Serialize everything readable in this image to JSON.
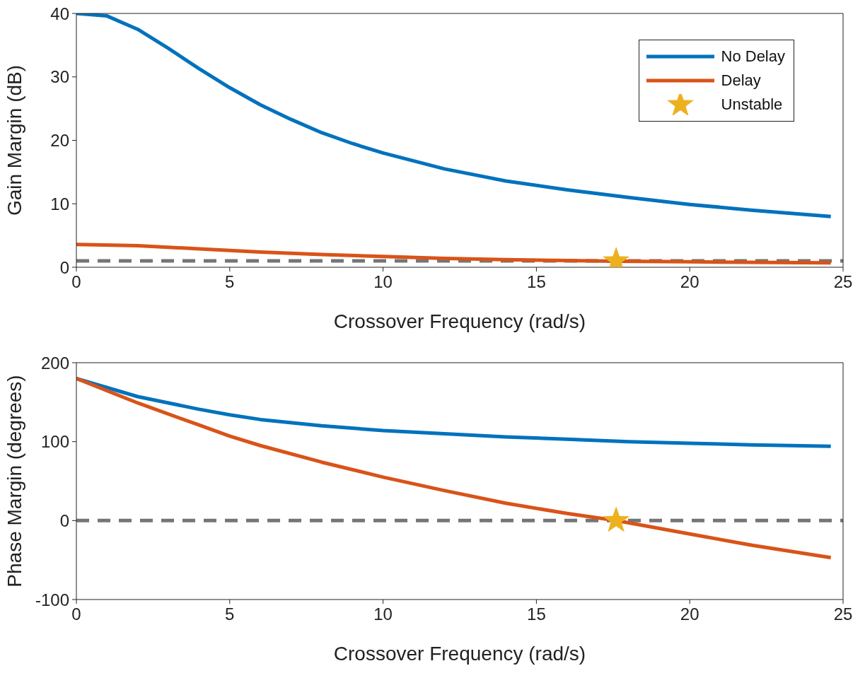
{
  "chart_data": [
    {
      "type": "line",
      "xlabel": "Crossover Frequency (rad/s)",
      "ylabel": "Gain Margin (dB)",
      "xlim": [
        0,
        25
      ],
      "xticks": [
        0,
        5,
        10,
        15,
        20,
        25
      ],
      "ylim": [
        0,
        40
      ],
      "yticks": [
        0,
        10,
        20,
        30,
        40
      ],
      "legend": "top right",
      "line_style": "solid",
      "marker": "none",
      "series": [
        {
          "name": "No Delay",
          "color": "#0072bd",
          "x": [
            0,
            1,
            2,
            3,
            4,
            5,
            6,
            7,
            8,
            9,
            10,
            12,
            14,
            16,
            18,
            20,
            22,
            24.6
          ],
          "values": [
            40,
            39.6,
            37.5,
            34.5,
            31.3,
            28.3,
            25.6,
            23.3,
            21.2,
            19.5,
            18,
            15.5,
            13.6,
            12.2,
            11,
            9.9,
            9,
            8
          ]
        },
        {
          "name": "Delay",
          "color": "#d95319",
          "x": [
            0,
            2,
            4,
            6,
            8,
            10,
            12,
            14,
            16,
            17.6,
            20,
            24.6
          ],
          "values": [
            3.6,
            3.4,
            2.9,
            2.4,
            2,
            1.7,
            1.4,
            1.2,
            1.05,
            0.95,
            0.85,
            0.7
          ]
        },
        {
          "name": "Unstable",
          "type": "scatter",
          "marker": "star",
          "color": "#edb120",
          "x": [
            17.6
          ],
          "values": [
            1
          ]
        }
      ],
      "ref_lines": [
        {
          "axis": "y",
          "value": 1,
          "color": "#666666",
          "line_style": "dashed"
        }
      ]
    },
    {
      "type": "line",
      "xlabel": "Crossover Frequency (rad/s)",
      "ylabel": "Phase Margin (degrees)",
      "xlim": [
        0,
        25
      ],
      "xticks": [
        0,
        5,
        10,
        15,
        20,
        25
      ],
      "ylim": [
        -100,
        200
      ],
      "yticks": [
        -100,
        0,
        100,
        200
      ],
      "line_style": "solid",
      "marker": "none",
      "series": [
        {
          "color": "#0072bd",
          "x": [
            0,
            2,
            4,
            5,
            6,
            8,
            10,
            12,
            14,
            16,
            18,
            20,
            22,
            24.6
          ],
          "values": [
            180,
            157,
            141,
            134,
            128,
            120,
            114,
            110,
            106,
            103,
            100,
            98,
            96,
            94
          ]
        },
        {
          "color": "#d95319",
          "x": [
            0,
            2,
            4,
            5,
            6,
            8,
            10,
            12,
            14,
            16,
            17.6,
            20,
            22,
            24.6
          ],
          "values": [
            180,
            149,
            121,
            107,
            95,
            74,
            55,
            38,
            22,
            9,
            0,
            -17,
            -31,
            -47
          ]
        },
        {
          "type": "scatter",
          "marker": "star",
          "color": "#edb120",
          "x": [
            17.6
          ],
          "values": [
            0
          ]
        }
      ],
      "ref_lines": [
        {
          "axis": "y",
          "value": 0,
          "color": "#666666",
          "line_style": "dashed"
        }
      ]
    }
  ]
}
